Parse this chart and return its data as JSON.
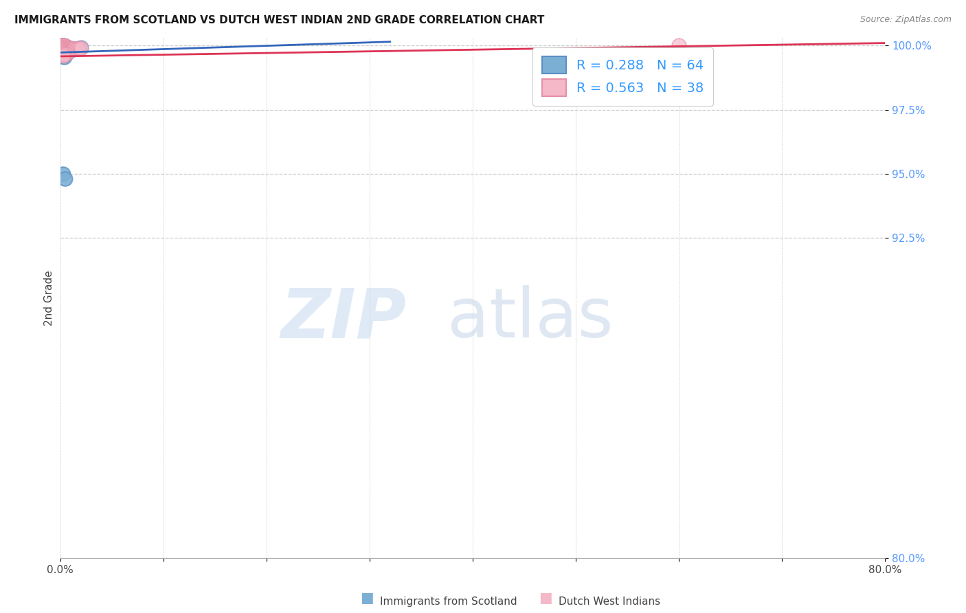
{
  "title": "IMMIGRANTS FROM SCOTLAND VS DUTCH WEST INDIAN 2ND GRADE CORRELATION CHART",
  "source": "Source: ZipAtlas.com",
  "ylabel": "2nd Grade",
  "legend_entries": [
    {
      "label": "Immigrants from Scotland",
      "R": "0.288",
      "N": "64"
    },
    {
      "label": "Dutch West Indians",
      "R": "0.563",
      "N": "38"
    }
  ],
  "blue_color": "#7bafd4",
  "blue_edge": "#5b8fc4",
  "pink_color": "#f4b8c8",
  "pink_edge": "#e890a8",
  "blue_line_color": "#3366bb",
  "pink_line_color": "#dd3355",
  "legend_text_color": "#3399ff",
  "legend_N_color": "#ff6600",
  "x_min": 0.0,
  "x_max": 0.8,
  "y_min": 0.8,
  "y_max": 1.003,
  "y_ticks": [
    0.8,
    0.925,
    0.95,
    0.975,
    1.0
  ],
  "y_tick_labels": [
    "80.0%",
    "92.5%",
    "95.0%",
    "97.5%",
    "100.0%"
  ],
  "x_ticks": [
    0.0,
    0.1,
    0.2,
    0.3,
    0.4,
    0.5,
    0.6,
    0.7,
    0.8
  ],
  "x_tick_labels": [
    "0.0%",
    "",
    "",
    "",
    "",
    "",
    "",
    "",
    "80.0%"
  ],
  "grid_color": "#cccccc",
  "bg_color": "#ffffff",
  "blue_trendline_x": [
    0.0,
    0.32
  ],
  "blue_trendline_y": [
    0.9973,
    1.0015
  ],
  "pink_trendline_x": [
    0.0,
    0.8
  ],
  "pink_trendline_y": [
    0.9958,
    1.001
  ],
  "blue_x": [
    0.001,
    0.001,
    0.001,
    0.002,
    0.002,
    0.002,
    0.002,
    0.002,
    0.003,
    0.003,
    0.003,
    0.003,
    0.003,
    0.004,
    0.004,
    0.004,
    0.004,
    0.005,
    0.005,
    0.005,
    0.005,
    0.006,
    0.006,
    0.006,
    0.007,
    0.007,
    0.007,
    0.008,
    0.008,
    0.009,
    0.009,
    0.01,
    0.01,
    0.011,
    0.012,
    0.013,
    0.014,
    0.016,
    0.018,
    0.02,
    0.001,
    0.001,
    0.002,
    0.002,
    0.003,
    0.003,
    0.003,
    0.004,
    0.004,
    0.005,
    0.005,
    0.006,
    0.002,
    0.003,
    0.004,
    0.005,
    0.002,
    0.003,
    0.003,
    0.004,
    0.002,
    0.003,
    0.004,
    0.005
  ],
  "blue_y": [
    1.0,
    1.0,
    1.0,
    1.0,
    1.0,
    1.0,
    1.0,
    0.9995,
    1.0,
    1.0,
    0.9995,
    0.999,
    0.9985,
    1.0,
    0.9995,
    0.999,
    0.9985,
    0.9995,
    0.999,
    0.9985,
    0.998,
    0.9995,
    0.999,
    0.9985,
    0.999,
    0.9985,
    0.998,
    0.999,
    0.9985,
    0.999,
    0.9985,
    0.999,
    0.9985,
    0.9988,
    0.9985,
    0.9985,
    0.9988,
    0.9988,
    0.999,
    0.9992,
    0.998,
    0.9975,
    0.998,
    0.9975,
    0.9978,
    0.9975,
    0.997,
    0.9978,
    0.9972,
    0.9975,
    0.9968,
    0.997,
    0.9965,
    0.9965,
    0.9965,
    0.9962,
    0.996,
    0.996,
    0.9955,
    0.9955,
    0.95,
    0.95,
    0.948,
    0.948
  ],
  "pink_x": [
    0.001,
    0.002,
    0.002,
    0.003,
    0.003,
    0.004,
    0.004,
    0.005,
    0.005,
    0.006,
    0.006,
    0.007,
    0.007,
    0.008,
    0.008,
    0.009,
    0.01,
    0.011,
    0.012,
    0.014,
    0.016,
    0.018,
    0.02,
    0.002,
    0.003,
    0.003,
    0.004,
    0.005,
    0.006,
    0.007,
    0.003,
    0.004,
    0.005,
    0.006,
    0.003,
    0.004,
    0.6,
    0.003
  ],
  "pink_y": [
    1.0,
    1.0,
    0.9995,
    1.0,
    0.9995,
    1.0,
    0.9995,
    0.9995,
    0.999,
    0.9995,
    0.999,
    0.9992,
    0.9988,
    0.999,
    0.9985,
    0.999,
    0.9988,
    0.9988,
    0.9988,
    0.9988,
    0.9988,
    0.999,
    0.999,
    0.9985,
    0.9985,
    0.998,
    0.9982,
    0.998,
    0.9978,
    0.9978,
    0.9978,
    0.9975,
    0.9972,
    0.997,
    0.9968,
    0.9965,
    1.0,
    0.996
  ]
}
